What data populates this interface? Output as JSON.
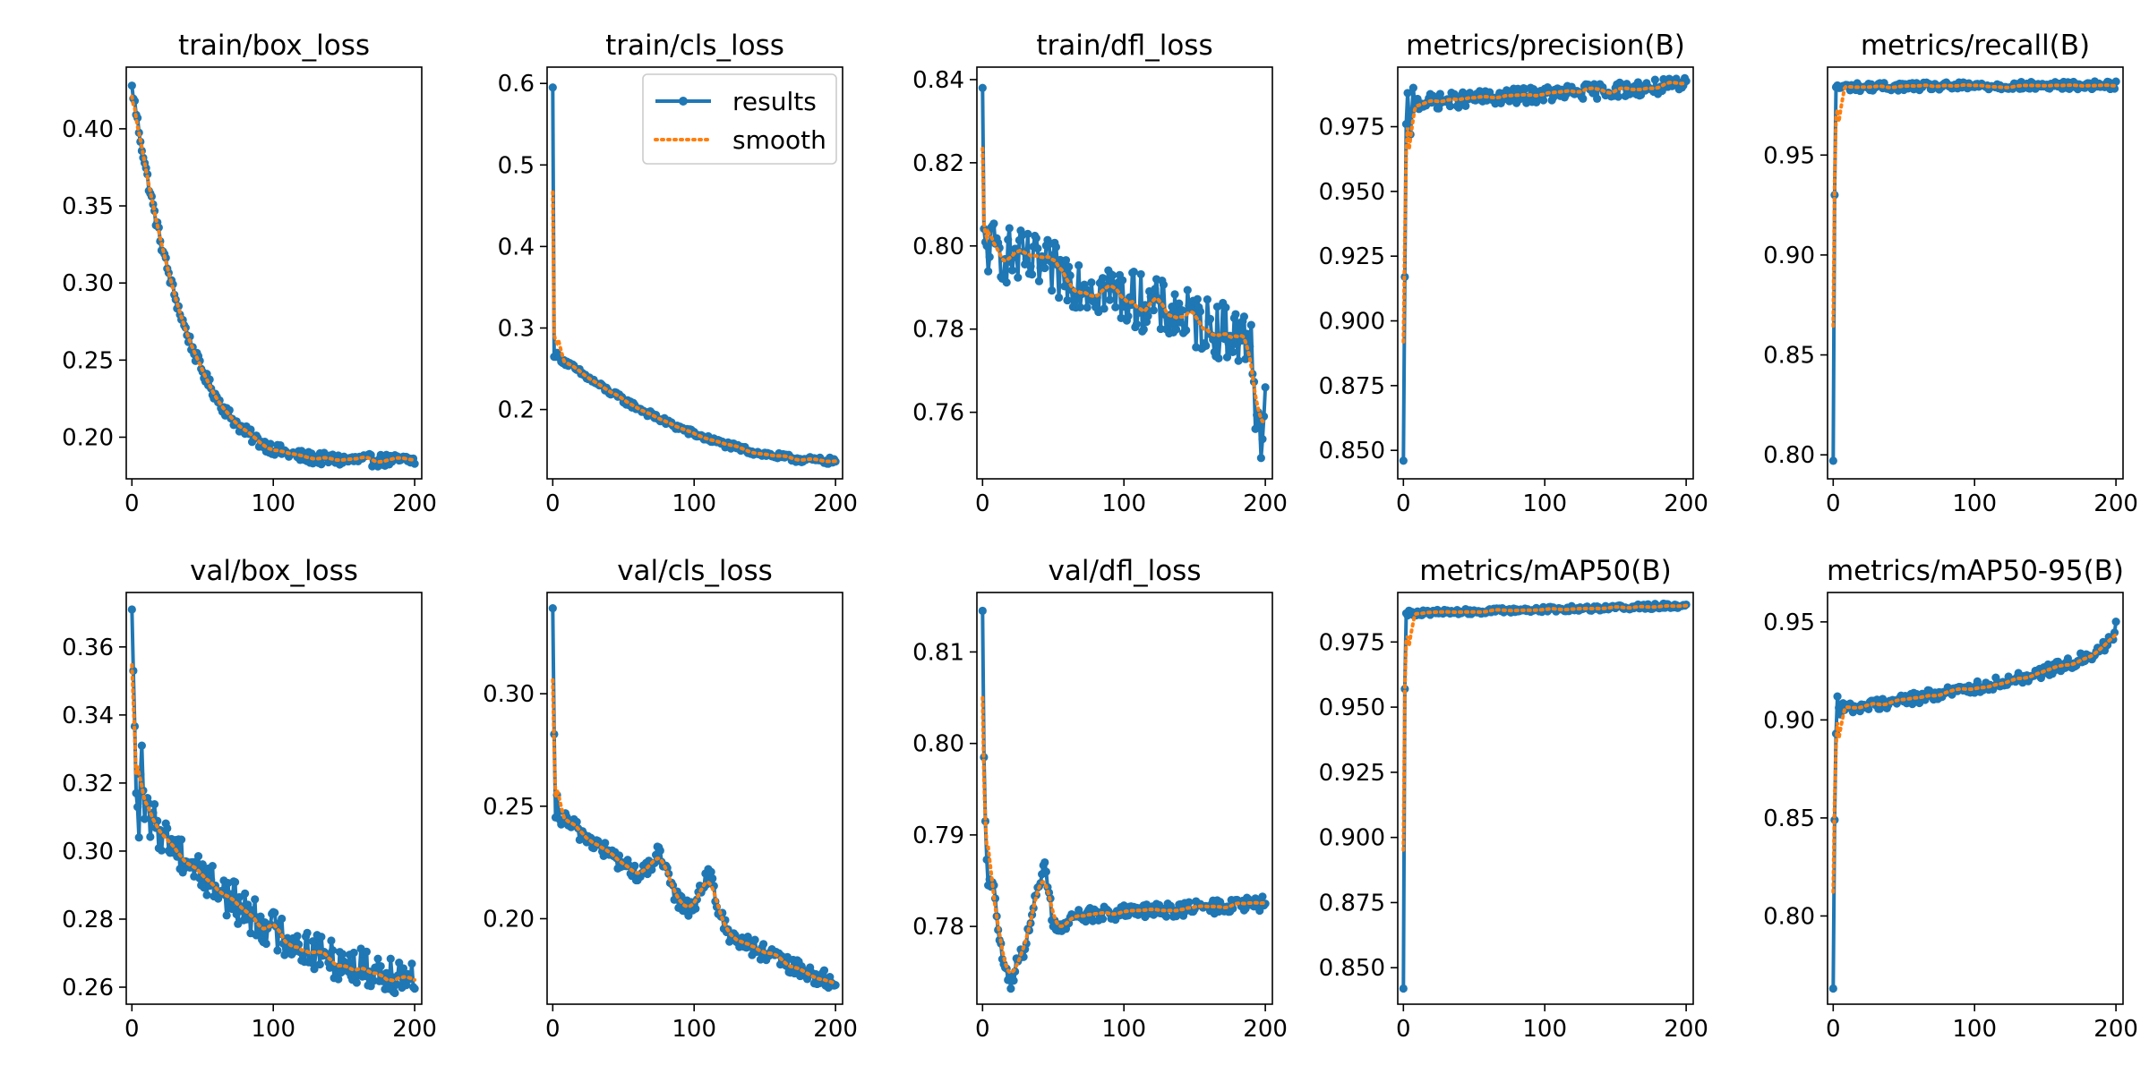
{
  "figure": {
    "legend": {
      "results_label": "results",
      "smooth_label": "smooth",
      "location": "upper-right of train/cls_loss panel"
    },
    "colors": {
      "results": "#1f77b4",
      "smooth": "#ff7f0e",
      "axes": "#000000",
      "background": "#ffffff"
    }
  },
  "chart_data": [
    {
      "type": "line",
      "title": "train/box_loss",
      "xlim": [
        -4,
        205
      ],
      "ylim": [
        0.173,
        0.44
      ],
      "xticks": [
        0,
        100,
        200
      ],
      "yticks": [
        0.2,
        0.25,
        0.3,
        0.35,
        0.4
      ],
      "ydecimals": 2,
      "start": 0.428,
      "end": 0.185,
      "curve": 5,
      "noise": 0.004,
      "spike": [
        0,
        0.428
      ],
      "series": [
        {
          "name": "results"
        },
        {
          "name": "smooth"
        }
      ]
    },
    {
      "type": "line",
      "title": "train/cls_loss",
      "xlim": [
        -4,
        205
      ],
      "ylim": [
        0.115,
        0.62
      ],
      "xticks": [
        0,
        100,
        200
      ],
      "yticks": [
        0.2,
        0.3,
        0.4,
        0.5,
        0.6
      ],
      "ydecimals": 1,
      "start": 0.27,
      "end": 0.137,
      "curve": 2,
      "noise": 0.004,
      "spike": [
        0,
        0.595
      ],
      "show_legend": true,
      "series": [
        {
          "name": "results"
        },
        {
          "name": "smooth"
        }
      ]
    },
    {
      "type": "line",
      "title": "train/dfl_loss",
      "xlim": [
        -4,
        205
      ],
      "ylim": [
        0.744,
        0.843
      ],
      "xticks": [
        0,
        100,
        200
      ],
      "yticks": [
        0.76,
        0.78,
        0.8,
        0.82,
        0.84
      ],
      "ydecimals": 2,
      "start": 0.8,
      "end": 0.776,
      "curve": 1,
      "noise": 0.007,
      "spike": [
        0,
        0.838
      ],
      "tail": [
        [
          190,
          0.781
        ],
        [
          193,
          0.756
        ],
        [
          195,
          0.76
        ],
        [
          197,
          0.749
        ],
        [
          199,
          0.759
        ],
        [
          200,
          0.766
        ]
      ],
      "series": [
        {
          "name": "results"
        },
        {
          "name": "smooth"
        }
      ]
    },
    {
      "type": "line",
      "title": "metrics/precision(B)",
      "xlim": [
        -4,
        205
      ],
      "ylim": [
        0.839,
        0.998
      ],
      "xticks": [
        0,
        100,
        200
      ],
      "yticks": [
        0.85,
        0.875,
        0.9,
        0.925,
        0.95,
        0.975
      ],
      "ydecimals": 3,
      "start": 0.984,
      "end": 0.991,
      "curve": 1,
      "noise": 0.003,
      "spike": [
        0,
        0.846
      ],
      "head": [
        [
          1,
          0.917
        ],
        [
          2,
          0.976
        ],
        [
          3,
          0.988
        ],
        [
          5,
          0.972
        ],
        [
          7,
          0.99
        ]
      ],
      "series": [
        {
          "name": "results"
        },
        {
          "name": "smooth"
        }
      ]
    },
    {
      "type": "line",
      "title": "metrics/recall(B)",
      "xlim": [
        -4,
        205
      ],
      "ylim": [
        0.788,
        0.994
      ],
      "xticks": [
        0,
        100,
        200
      ],
      "yticks": [
        0.8,
        0.85,
        0.9,
        0.95
      ],
      "ydecimals": 2,
      "start": 0.984,
      "end": 0.985,
      "curve": 1,
      "noise": 0.002,
      "spike": [
        0,
        0.797
      ],
      "head": [
        [
          1,
          0.93
        ],
        [
          2,
          0.984
        ]
      ],
      "series": [
        {
          "name": "results"
        },
        {
          "name": "smooth"
        }
      ]
    },
    {
      "type": "line",
      "title": "val/box_loss",
      "xlim": [
        -4,
        205
      ],
      "ylim": [
        0.255,
        0.376
      ],
      "xticks": [
        0,
        100,
        200
      ],
      "yticks": [
        0.26,
        0.28,
        0.3,
        0.32,
        0.34,
        0.36
      ],
      "ydecimals": 2,
      "start": 0.316,
      "end": 0.264,
      "curve": 2,
      "noise": 0.006,
      "spike": [
        0,
        0.371
      ],
      "head": [
        [
          1,
          0.353
        ],
        [
          3,
          0.317
        ],
        [
          5,
          0.304
        ],
        [
          7,
          0.331
        ]
      ],
      "series": [
        {
          "name": "results"
        },
        {
          "name": "smooth"
        }
      ]
    },
    {
      "type": "line",
      "title": "val/cls_loss",
      "xlim": [
        -4,
        205
      ],
      "ylim": [
        0.162,
        0.345
      ],
      "xticks": [
        0,
        100,
        200
      ],
      "yticks": [
        0.2,
        0.25,
        0.3
      ],
      "ydecimals": 2,
      "start": 0.248,
      "end": 0.172,
      "curve": 1.3,
      "noise": 0.004,
      "spike": [
        0,
        0.338
      ],
      "head": [
        [
          1,
          0.282
        ],
        [
          3,
          0.255
        ],
        [
          5,
          0.244
        ]
      ],
      "bump": [
        [
          75,
          0.015
        ],
        [
          110,
          0.02
        ]
      ],
      "series": [
        {
          "name": "results"
        },
        {
          "name": "smooth"
        }
      ]
    },
    {
      "type": "line",
      "title": "val/dfl_loss",
      "xlim": [
        -4,
        205
      ],
      "ylim": [
        0.7715,
        0.8165
      ],
      "xticks": [
        0,
        100,
        200
      ],
      "yticks": [
        0.78,
        0.79,
        0.8,
        0.81
      ],
      "ydecimals": 2,
      "start": 0.7805,
      "end": 0.7825,
      "curve": 1,
      "noise": 0.0008,
      "spike": [
        0,
        0.8145
      ],
      "head": [
        [
          1,
          0.7985
        ],
        [
          2,
          0.7915
        ],
        [
          4,
          0.7845
        ],
        [
          8,
          0.7845
        ],
        [
          12,
          0.7785
        ],
        [
          16,
          0.7755
        ],
        [
          20,
          0.7732
        ],
        [
          24,
          0.7765
        ],
        [
          30,
          0.7775
        ],
        [
          36,
          0.782
        ],
        [
          44,
          0.787
        ],
        [
          50,
          0.78
        ],
        [
          56,
          0.7795
        ],
        [
          62,
          0.781
        ]
      ],
      "series": [
        {
          "name": "results"
        },
        {
          "name": "smooth"
        }
      ]
    },
    {
      "type": "line",
      "title": "metrics/mAP50(B)",
      "xlim": [
        -4,
        205
      ],
      "ylim": [
        0.836,
        0.994
      ],
      "xticks": [
        0,
        100,
        200
      ],
      "yticks": [
        0.85,
        0.875,
        0.9,
        0.925,
        0.95,
        0.975
      ],
      "ydecimals": 3,
      "start": 0.986,
      "end": 0.989,
      "curve": 1,
      "noise": 0.001,
      "spike": [
        0,
        0.842
      ],
      "head": [
        [
          1,
          0.957
        ],
        [
          2,
          0.986
        ]
      ],
      "series": [
        {
          "name": "results"
        },
        {
          "name": "smooth"
        }
      ]
    },
    {
      "type": "line",
      "title": "metrics/mAP50-95(B)",
      "xlim": [
        -4,
        205
      ],
      "ylim": [
        0.755,
        0.965
      ],
      "xticks": [
        0,
        100,
        200
      ],
      "yticks": [
        0.8,
        0.85,
        0.9,
        0.95
      ],
      "ydecimals": 2,
      "start": 0.905,
      "end": 0.948,
      "curve": 0.45,
      "noise": 0.003,
      "spike": [
        0,
        0.763
      ],
      "head": [
        [
          1,
          0.849
        ],
        [
          2,
          0.893
        ],
        [
          3,
          0.912
        ]
      ],
      "series": [
        {
          "name": "results"
        },
        {
          "name": "smooth"
        }
      ]
    }
  ]
}
